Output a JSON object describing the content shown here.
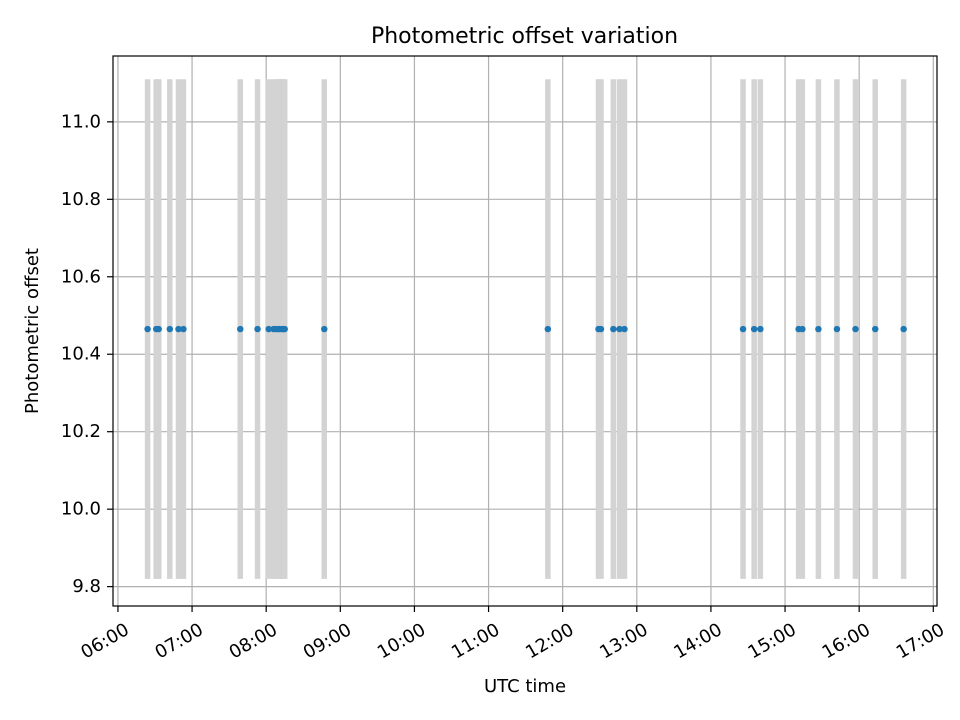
{
  "chart_data": {
    "type": "scatter",
    "title": "Photometric offset variation",
    "xlabel": "UTC time",
    "ylabel": "Photometric offset",
    "xlim": [
      "05:56",
      "17:03"
    ],
    "ylim": [
      9.75,
      11.17
    ],
    "x_ticks": [
      "06:00",
      "07:00",
      "08:00",
      "09:00",
      "10:00",
      "11:00",
      "12:00",
      "13:00",
      "14:00",
      "15:00",
      "16:00",
      "17:00"
    ],
    "y_ticks": [
      "9.8",
      "10.0",
      "10.2",
      "10.4",
      "10.6",
      "10.8",
      "11.0"
    ],
    "grid": true,
    "colors": {
      "points": "#1f77b4",
      "error_bars": "#d3d3d3"
    },
    "series": [
      {
        "x": [
          "06:24",
          "06:31",
          "06:33",
          "06:42",
          "06:49",
          "06:53",
          "07:39",
          "07:53",
          "08:02",
          "08:06",
          "08:08",
          "08:10",
          "08:11",
          "08:13",
          "08:14",
          "08:15",
          "08:47",
          "11:48",
          "12:29",
          "12:31",
          "12:41",
          "12:46",
          "12:50",
          "14:26",
          "14:35",
          "14:40",
          "15:11",
          "15:14",
          "15:27",
          "15:42",
          "15:57",
          "16:13",
          "16:36"
        ],
        "y": [
          10.465,
          10.465,
          10.465,
          10.465,
          10.465,
          10.465,
          10.465,
          10.465,
          10.465,
          10.465,
          10.465,
          10.465,
          10.465,
          10.465,
          10.465,
          10.465,
          10.465,
          10.465,
          10.465,
          10.465,
          10.465,
          10.465,
          10.465,
          10.465,
          10.465,
          10.465,
          10.465,
          10.465,
          10.465,
          10.465,
          10.465,
          10.465,
          10.465
        ],
        "y_err": [
          0.645,
          0.645,
          0.645,
          0.645,
          0.645,
          0.645,
          0.645,
          0.645,
          0.645,
          0.645,
          0.645,
          0.645,
          0.645,
          0.645,
          0.645,
          0.645,
          0.645,
          0.645,
          0.645,
          0.645,
          0.645,
          0.645,
          0.645,
          0.645,
          0.645,
          0.645,
          0.645,
          0.645,
          0.645,
          0.645,
          0.645,
          0.645,
          0.645
        ]
      }
    ]
  }
}
